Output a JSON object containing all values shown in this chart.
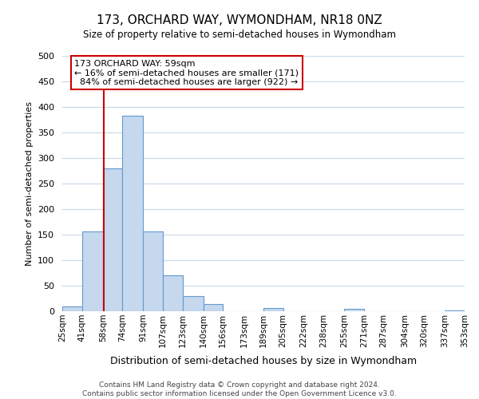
{
  "title": "173, ORCHARD WAY, WYMONDHAM, NR18 0NZ",
  "subtitle": "Size of property relative to semi-detached houses in Wymondham",
  "xlabel": "Distribution of semi-detached houses by size in Wymondham",
  "ylabel": "Number of semi-detached properties",
  "bin_edges": [
    25,
    41,
    58,
    74,
    91,
    107,
    123,
    140,
    156,
    173,
    189,
    205,
    222,
    238,
    255,
    271,
    287,
    304,
    320,
    337,
    353
  ],
  "bin_labels": [
    "25sqm",
    "41sqm",
    "58sqm",
    "74sqm",
    "91sqm",
    "107sqm",
    "123sqm",
    "140sqm",
    "156sqm",
    "173sqm",
    "189sqm",
    "205sqm",
    "222sqm",
    "238sqm",
    "255sqm",
    "271sqm",
    "287sqm",
    "304sqm",
    "320sqm",
    "337sqm",
    "353sqm"
  ],
  "bar_heights": [
    10,
    157,
    280,
    383,
    157,
    70,
    30,
    14,
    0,
    0,
    7,
    0,
    0,
    0,
    5,
    0,
    0,
    0,
    0,
    2
  ],
  "bar_color": "#c5d8ee",
  "bar_edge_color": "#6699cc",
  "property_size": 59,
  "property_label": "173 ORCHARD WAY: 59sqm",
  "pct_smaller": 16,
  "pct_larger": 84,
  "n_smaller": 171,
  "n_larger": 922,
  "vline_color": "#cc0000",
  "ylim": [
    0,
    500
  ],
  "yticks": [
    0,
    50,
    100,
    150,
    200,
    250,
    300,
    350,
    400,
    450,
    500
  ],
  "annotation_box_color": "#cc0000",
  "footer_line1": "Contains HM Land Registry data © Crown copyright and database right 2024.",
  "footer_line2": "Contains public sector information licensed under the Open Government Licence v3.0.",
  "background_color": "#ffffff",
  "grid_color": "#c8d8e8"
}
